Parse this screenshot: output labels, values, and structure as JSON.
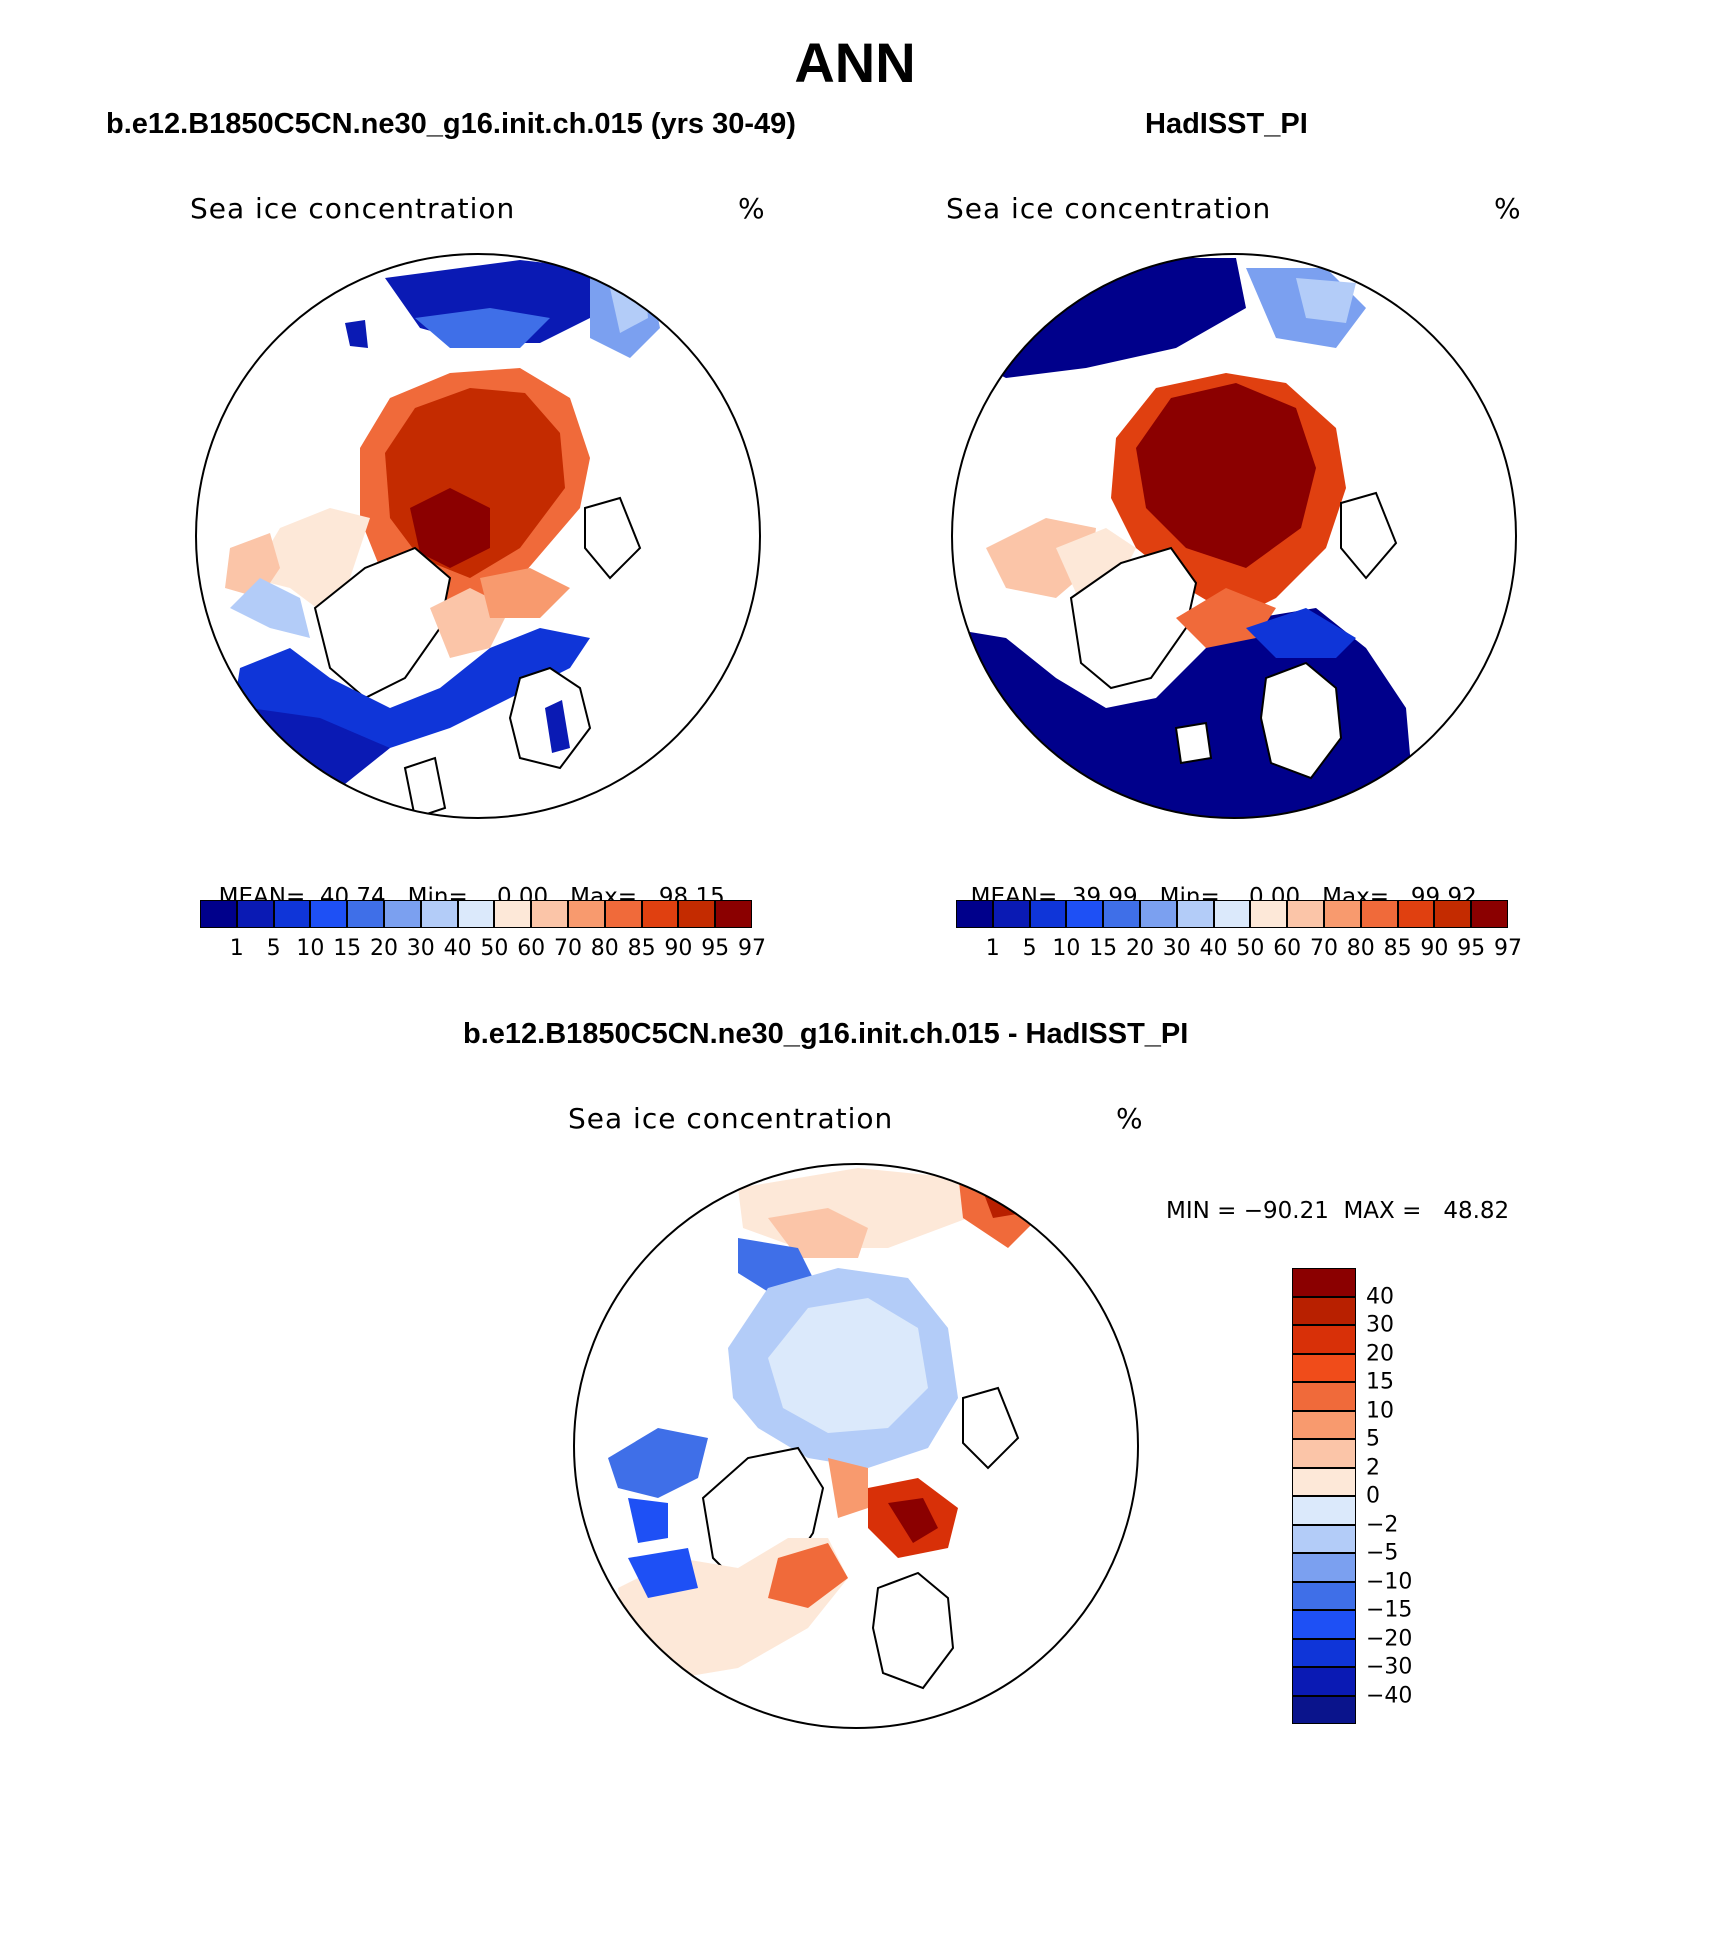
{
  "title": "ANN",
  "colors": {
    "scale15": [
      "#00008b",
      "#0a1ab4",
      "#0f35d8",
      "#1e50f5",
      "#3f6fe8",
      "#7ba0f0",
      "#b3ccf8",
      "#dbe9fb",
      "#fde8d8",
      "#fbc5a8",
      "#f89a6e",
      "#f06a3a",
      "#e04010",
      "#c42b00",
      "#8b0000"
    ],
    "diff16": [
      "#0a148c",
      "#0a1ab4",
      "#0f35d8",
      "#1e50f5",
      "#3f6fe8",
      "#7ba0f0",
      "#b3ccf8",
      "#dbe9fb",
      "#fde8d8",
      "#fbc5a8",
      "#f89a6e",
      "#f06a3a",
      "#f04c1a",
      "#d83008",
      "#b82000",
      "#8b0000"
    ]
  },
  "panels": [
    {
      "title": "b.e12.B1850C5CN.ne30_g16.init.ch.015 (yrs 30-49)",
      "variable": "Sea ice concentration",
      "unit": "%",
      "mean_label": "MEAN=",
      "mean": "40.74",
      "min_label": "Min=",
      "min": "0.00",
      "max_label": "Max=",
      "max": "98.15",
      "colorbar_ticks": [
        "1",
        "5",
        "10",
        "15",
        "20",
        "30",
        "40",
        "50",
        "60",
        "70",
        "80",
        "85",
        "90",
        "95",
        "97"
      ]
    },
    {
      "title": "HadISST_PI",
      "variable": "Sea ice concentration",
      "unit": "%",
      "mean_label": "MEAN=",
      "mean": "39.99",
      "min_label": "Min=",
      "min": "0.00",
      "max_label": "Max=",
      "max": "99.92",
      "colorbar_ticks": [
        "1",
        "5",
        "10",
        "15",
        "20",
        "30",
        "40",
        "50",
        "60",
        "70",
        "80",
        "85",
        "90",
        "95",
        "97"
      ]
    }
  ],
  "diff": {
    "title": "b.e12.B1850C5CN.ne30_g16.init.ch.015 - HadISST_PI",
    "variable": "Sea ice concentration",
    "unit": "%",
    "minmax_label": "MIN = −90.21  MAX =   48.82",
    "colorbar_ticks": [
      "40",
      "30",
      "20",
      "15",
      "10",
      "5",
      "2",
      "0",
      "−2",
      "−5",
      "−10",
      "−15",
      "−20",
      "−30",
      "−40"
    ]
  }
}
